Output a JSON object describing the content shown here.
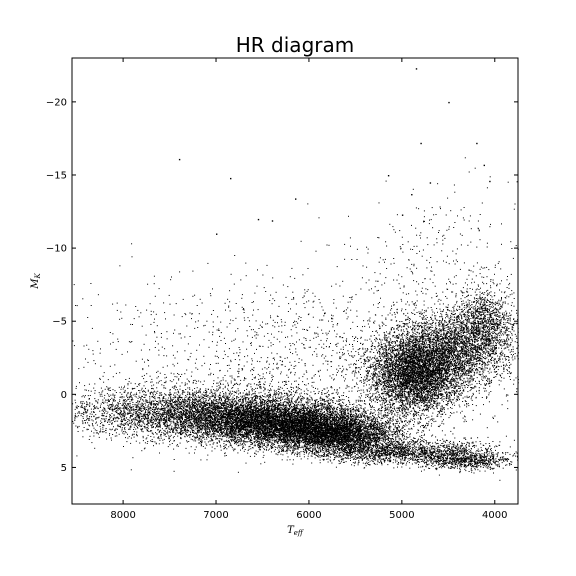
{
  "chart_data": {
    "type": "scatter",
    "title": "HR diagram",
    "xlabel": "T_eff",
    "ylabel": "M_K",
    "xlim": [
      8550,
      3750
    ],
    "ylim": [
      7.5,
      -23
    ],
    "x_inverted": true,
    "y_inverted": true,
    "grid": false,
    "x_ticks": [
      8000,
      7000,
      6000,
      5000,
      4000
    ],
    "x_tick_labels": [
      "8000",
      "7000",
      "6000",
      "5000",
      "4000"
    ],
    "y_ticks": [
      -20,
      -15,
      -10,
      -5,
      0,
      5
    ],
    "y_tick_labels": [
      "−20",
      "−15",
      "−10",
      "−5",
      "0",
      "5"
    ],
    "point_color": "#000000",
    "series": [
      {
        "values_description_free": true,
        "clusters": [
          {
            "center": [
              7200,
              1.2
            ],
            "spread": [
              700,
              0.9
            ],
            "count": 4200
          },
          {
            "center": [
              6500,
              1.8
            ],
            "spread": [
              500,
              0.8
            ],
            "count": 4500
          },
          {
            "center": [
              6000,
              2.3
            ],
            "spread": [
              400,
              0.7
            ],
            "count": 3800
          },
          {
            "center": [
              5600,
              2.8
            ],
            "spread": [
              300,
              0.6
            ],
            "count": 2200
          },
          {
            "center": [
              4850,
              -1.5
            ],
            "spread": [
              250,
              1.4
            ],
            "count": 5200
          },
          {
            "center": [
              4400,
              -3.2
            ],
            "spread": [
              300,
              1.3
            ],
            "count": 2600
          },
          {
            "center": [
              4100,
              -5.0
            ],
            "spread": [
              150,
              1.2
            ],
            "count": 900
          },
          {
            "center": [
              5000,
              3.9
            ],
            "spread": [
              500,
              0.4
            ],
            "count": 1800
          },
          {
            "center": [
              4300,
              4.5
            ],
            "spread": [
              250,
              0.3
            ],
            "count": 700
          },
          {
            "center": [
              6000,
              -2.5
            ],
            "spread": [
              1300,
              2.8
            ],
            "count": 1600
          },
          {
            "center": [
              4500,
              -9.0
            ],
            "spread": [
              500,
              3.0
            ],
            "count": 350
          }
        ],
        "outliers": [
          [
            4850,
            -22.3
          ],
          [
            4500,
            -20.0
          ],
          [
            4200,
            -17.2
          ],
          [
            4800,
            -17.2
          ],
          [
            7400,
            -16.1
          ],
          [
            4120,
            -15.7
          ],
          [
            6850,
            -14.8
          ],
          [
            5150,
            -15.0
          ],
          [
            4700,
            -14.5
          ],
          [
            4900,
            -13.7
          ],
          [
            6150,
            -13.4
          ],
          [
            6550,
            -12.0
          ],
          [
            6400,
            -11.9
          ],
          [
            5000,
            -12.3
          ],
          [
            4060,
            -14.6
          ],
          [
            7000,
            -11.0
          ]
        ]
      }
    ]
  }
}
